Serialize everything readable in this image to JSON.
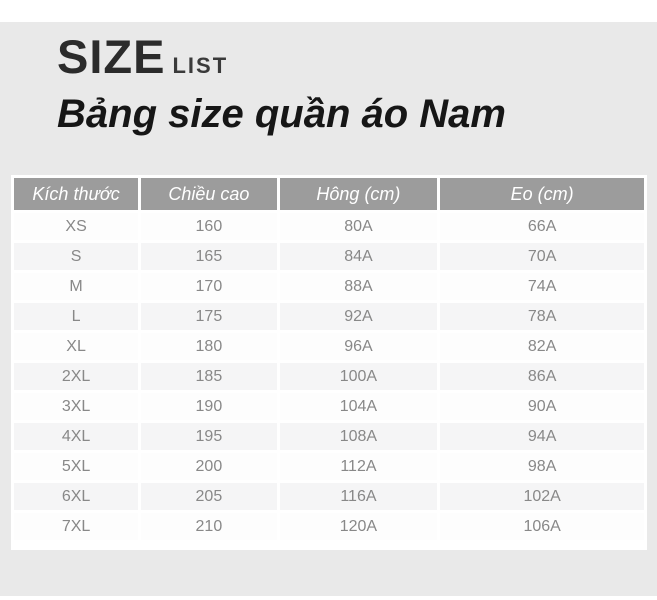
{
  "header": {
    "title_main": "SIZE",
    "title_sub": "LIST",
    "subtitle": "Bảng size quần áo Nam"
  },
  "table": {
    "columns": [
      "Kích thước",
      "Chiều cao",
      "Hông (cm)",
      "Eo (cm)"
    ],
    "rows": [
      [
        "XS",
        "160",
        "80A",
        "66A"
      ],
      [
        "S",
        "165",
        "84A",
        "70A"
      ],
      [
        "M",
        "170",
        "88A",
        "74A"
      ],
      [
        "L",
        "175",
        "92A",
        "78A"
      ],
      [
        "XL",
        "180",
        "96A",
        "82A"
      ],
      [
        "2XL",
        "185",
        "100A",
        "86A"
      ],
      [
        "3XL",
        "190",
        "104A",
        "90A"
      ],
      [
        "4XL",
        "195",
        "108A",
        "94A"
      ],
      [
        "5XL",
        "200",
        "112A",
        "98A"
      ],
      [
        "6XL",
        "205",
        "116A",
        "102A"
      ],
      [
        "7XL",
        "210",
        "120A",
        "106A"
      ]
    ]
  },
  "colors": {
    "page_background": "#e9e9e9",
    "table_header_background": "#9c9c9c",
    "table_header_text": "#ffffff",
    "row_text": "#888888",
    "title_text": "#2b2b2b",
    "subtitle_text": "#161616"
  },
  "chart_data": {
    "type": "table",
    "title": "Bảng size quần áo Nam",
    "subtitle": "SIZE LIST",
    "columns": [
      "Kích thước",
      "Chiều cao",
      "Hông (cm)",
      "Eo (cm)"
    ],
    "rows": [
      [
        "XS",
        160,
        "80A",
        "66A"
      ],
      [
        "S",
        165,
        "84A",
        "70A"
      ],
      [
        "M",
        170,
        "88A",
        "74A"
      ],
      [
        "L",
        175,
        "92A",
        "78A"
      ],
      [
        "XL",
        180,
        "96A",
        "82A"
      ],
      [
        "2XL",
        185,
        "100A",
        "86A"
      ],
      [
        "3XL",
        190,
        "104A",
        "90A"
      ],
      [
        "4XL",
        195,
        "108A",
        "94A"
      ],
      [
        "5XL",
        200,
        "112A",
        "98A"
      ],
      [
        "6XL",
        205,
        "116A",
        "102A"
      ],
      [
        "7XL",
        210,
        "120A",
        "106A"
      ]
    ]
  }
}
